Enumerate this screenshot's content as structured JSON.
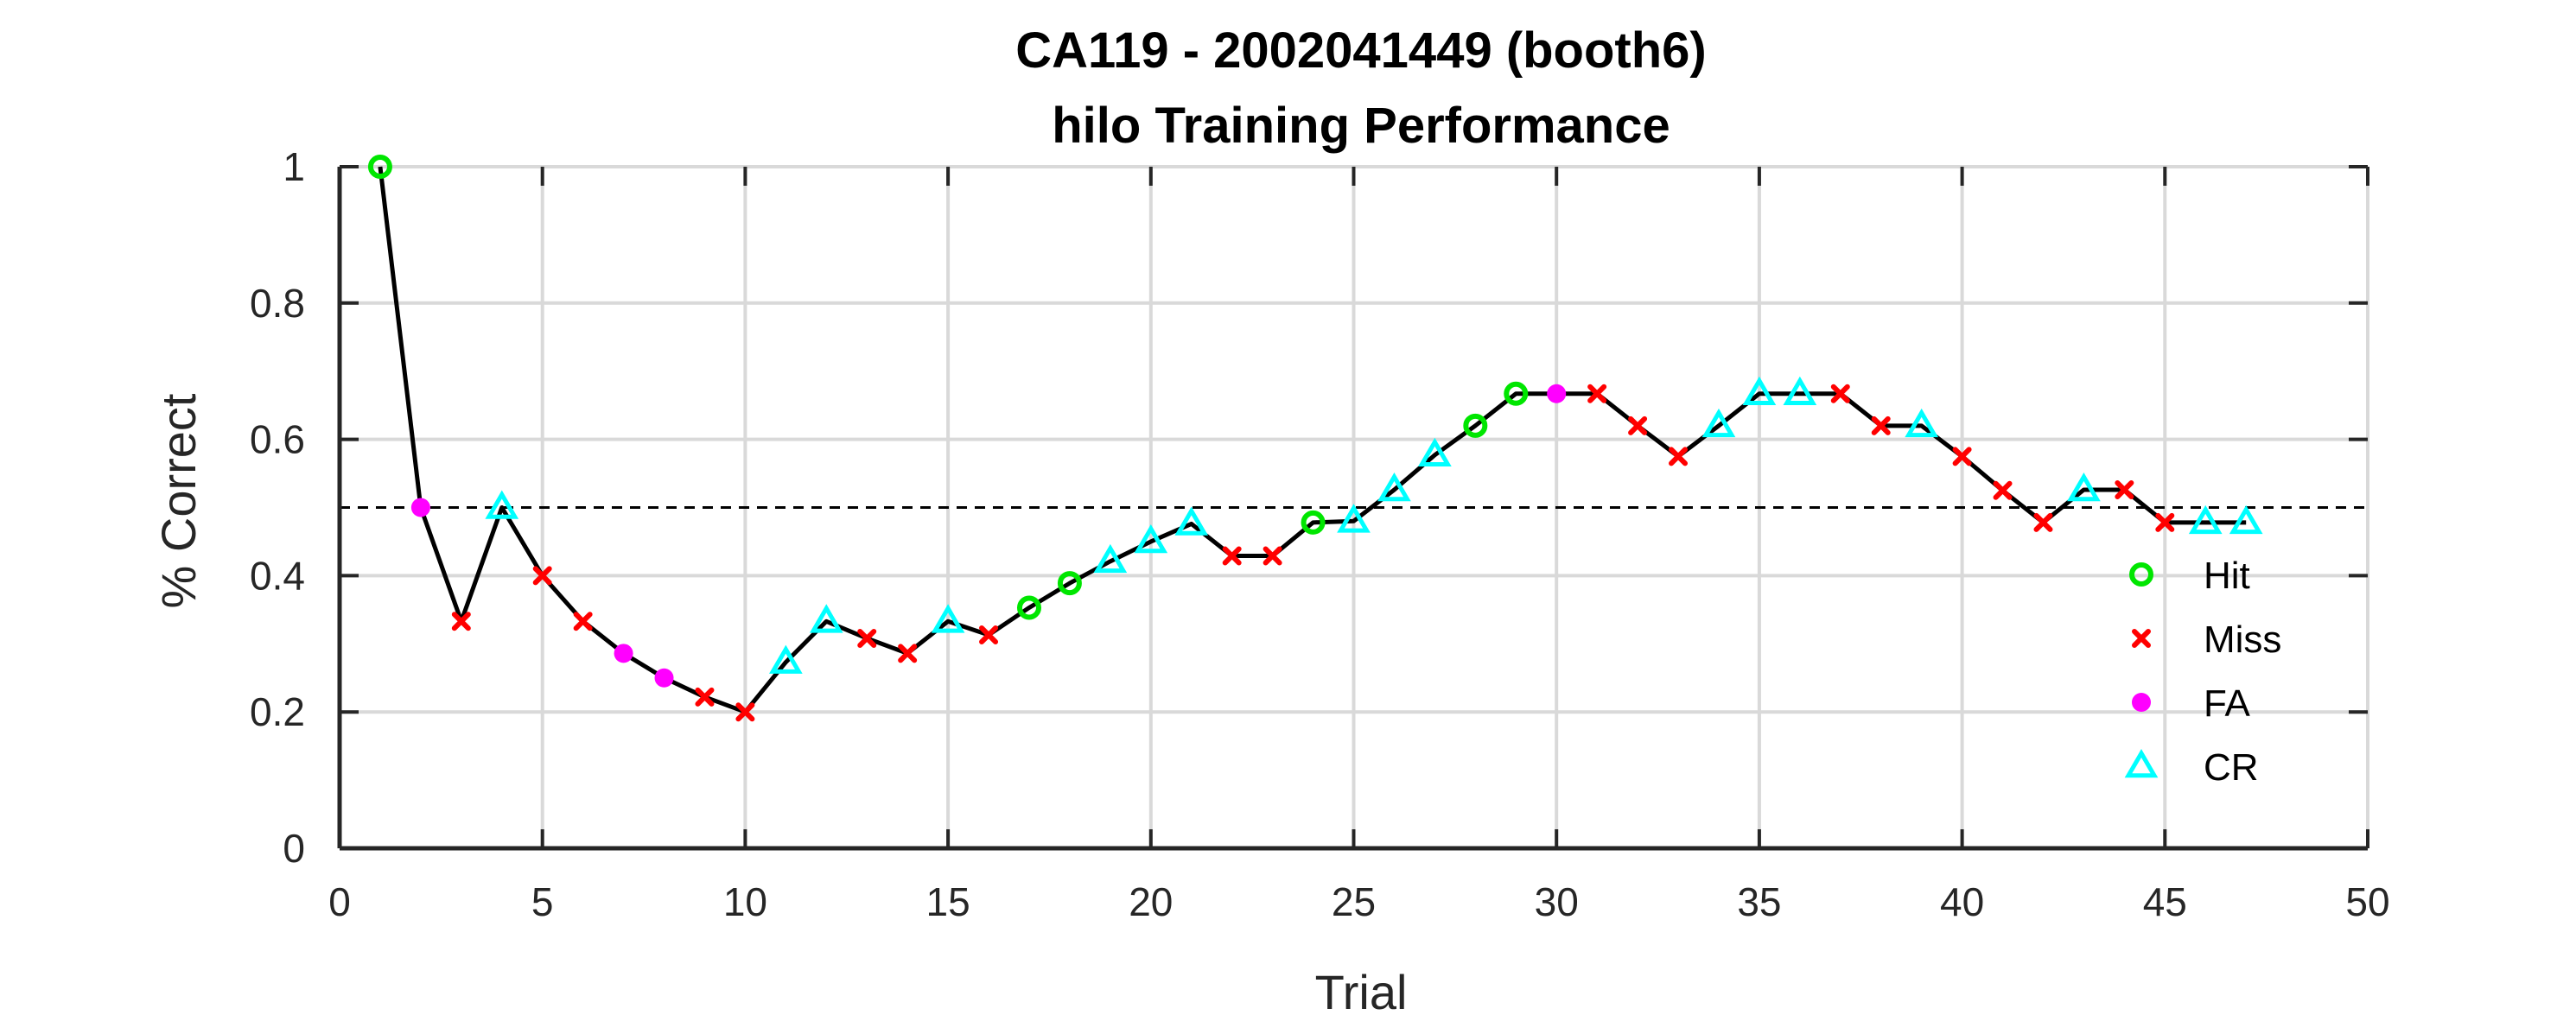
{
  "chart_data": {
    "type": "line",
    "title": "CA119 - 2002041449 (booth6)",
    "subtitle": "hilo Training Performance",
    "xlabel": "Trial",
    "ylabel": "% Correct",
    "xlim": [
      0,
      50
    ],
    "ylim": [
      0,
      1
    ],
    "x_ticks": [
      0,
      5,
      10,
      15,
      20,
      25,
      30,
      35,
      40,
      45,
      50
    ],
    "y_ticks": [
      0,
      0.2,
      0.4,
      0.6,
      0.8,
      1
    ],
    "grid": true,
    "reference_line": {
      "y": 0.5,
      "style": "dashed"
    },
    "legend_position": "right",
    "colors": {
      "line": "#000000",
      "Hit": "#00e600",
      "Miss": "#ff0000",
      "FA": "#ff00ff",
      "CR": "#00ffff",
      "grid": "#d9d9d9"
    },
    "legend": [
      {
        "label": "Hit",
        "marker": "circle"
      },
      {
        "label": "Miss",
        "marker": "x"
      },
      {
        "label": "FA",
        "marker": "dot"
      },
      {
        "label": "CR",
        "marker": "triangle"
      }
    ],
    "series": [
      {
        "name": "Performance",
        "x": [
          1,
          2,
          3,
          4,
          5,
          6,
          7,
          8,
          9,
          10,
          11,
          12,
          13,
          14,
          15,
          16,
          17,
          18,
          19,
          20,
          21,
          22,
          23,
          24,
          25,
          26,
          27,
          28,
          29,
          30,
          31,
          32,
          33,
          34,
          35,
          36,
          37,
          38,
          39,
          40,
          41,
          42,
          43,
          44,
          45,
          46,
          47
        ],
        "y": [
          1.0,
          0.5,
          0.333,
          0.5,
          0.4,
          0.333,
          0.286,
          0.25,
          0.222,
          0.2,
          0.273,
          0.333,
          0.308,
          0.286,
          0.333,
          0.313,
          0.353,
          0.389,
          0.421,
          0.45,
          0.476,
          0.429,
          0.429,
          0.478,
          0.48,
          0.526,
          0.577,
          0.62,
          0.667,
          0.667,
          0.667,
          0.62,
          0.575,
          0.62,
          0.667,
          0.667,
          0.667,
          0.62,
          0.62,
          0.575,
          0.525,
          0.478,
          0.526,
          0.526,
          0.478,
          0.478,
          0.478
        ],
        "outcomes": [
          "Hit",
          "FA",
          "Miss",
          "CR",
          "Miss",
          "Miss",
          "FA",
          "FA",
          "Miss",
          "Miss",
          "CR",
          "CR",
          "Miss",
          "Miss",
          "CR",
          "Miss",
          "Hit",
          "Hit",
          "CR",
          "CR",
          "CR",
          "Miss",
          "Miss",
          "Hit",
          "CR",
          "CR",
          "CR",
          "Hit",
          "Hit",
          "FA",
          "Miss",
          "Miss",
          "Miss",
          "CR",
          "CR",
          "CR",
          "Miss",
          "Miss",
          "CR",
          "Miss",
          "Miss",
          "Miss",
          "CR",
          "Miss",
          "Miss",
          "CR",
          "CR"
        ]
      }
    ]
  }
}
